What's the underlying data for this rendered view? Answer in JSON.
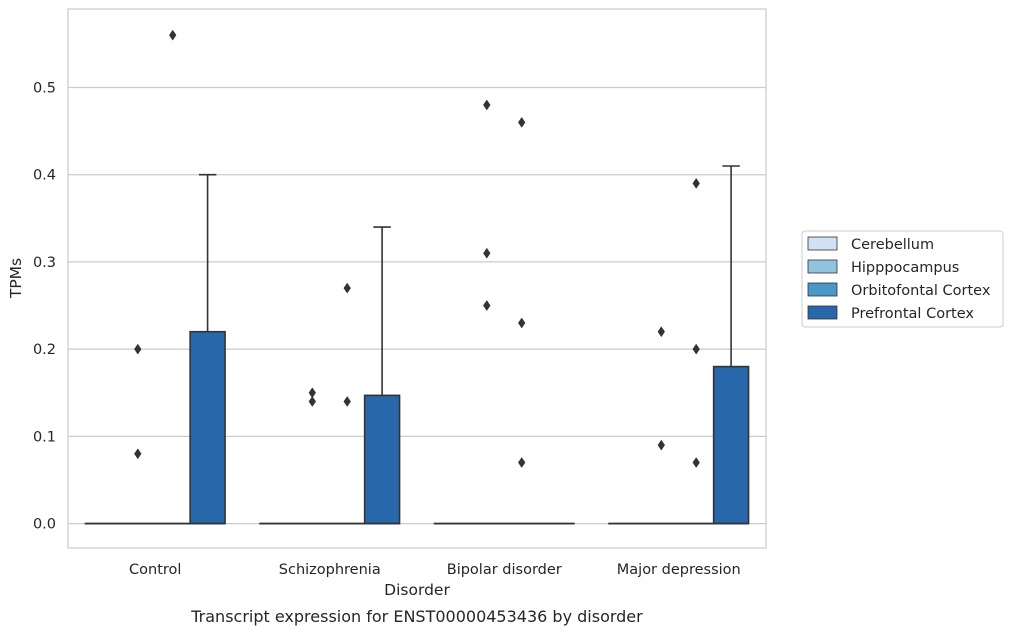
{
  "chart_data": {
    "type": "box",
    "caption": "Transcript expression for ENST00000453436 by disorder",
    "xlabel": "Disorder",
    "ylabel": "TPMs",
    "ylim": [
      -0.028,
      0.59
    ],
    "yticks": [
      0.0,
      0.1,
      0.2,
      0.3,
      0.4,
      0.5
    ],
    "ytick_labels": [
      "0.0",
      "0.1",
      "0.2",
      "0.3",
      "0.4",
      "0.5"
    ],
    "grid": "horizontal",
    "legend_position": "right",
    "categories": [
      "Control",
      "Schizophrenia",
      "Bipolar disorder",
      "Major depression"
    ],
    "series": [
      {
        "name": "Cerebellum",
        "color": "#cfe1f2",
        "boxes": [
          {
            "q1": 0,
            "median": 0,
            "q3": 0,
            "whisker_low": 0,
            "whisker_high": 0,
            "outliers": []
          },
          {
            "q1": 0,
            "median": 0,
            "q3": 0,
            "whisker_low": 0,
            "whisker_high": 0,
            "outliers": []
          },
          {
            "q1": 0,
            "median": 0,
            "q3": 0,
            "whisker_low": 0,
            "whisker_high": 0,
            "outliers": []
          },
          {
            "q1": 0,
            "median": 0,
            "q3": 0,
            "whisker_low": 0,
            "whisker_high": 0,
            "outliers": []
          }
        ]
      },
      {
        "name": "Hipppocampus",
        "color": "#93c4de",
        "boxes": [
          {
            "q1": 0,
            "median": 0,
            "q3": 0,
            "whisker_low": 0,
            "whisker_high": 0,
            "outliers": [
              0.2,
              0.08
            ]
          },
          {
            "q1": 0,
            "median": 0,
            "q3": 0,
            "whisker_low": 0,
            "whisker_high": 0,
            "outliers": [
              0.15,
              0.14
            ]
          },
          {
            "q1": 0,
            "median": 0,
            "q3": 0,
            "whisker_low": 0,
            "whisker_high": 0,
            "outliers": [
              0.48,
              0.31,
              0.25
            ]
          },
          {
            "q1": 0,
            "median": 0,
            "q3": 0,
            "whisker_low": 0,
            "whisker_high": 0,
            "outliers": [
              0.22,
              0.09
            ]
          }
        ]
      },
      {
        "name": "Orbitofontal Cortex",
        "color": "#4a98c9",
        "boxes": [
          {
            "q1": 0,
            "median": 0,
            "q3": 0,
            "whisker_low": 0,
            "whisker_high": 0,
            "outliers": [
              0.56
            ]
          },
          {
            "q1": 0,
            "median": 0,
            "q3": 0,
            "whisker_low": 0,
            "whisker_high": 0,
            "outliers": [
              0.14,
              0.27
            ]
          },
          {
            "q1": 0,
            "median": 0,
            "q3": 0,
            "whisker_low": 0,
            "whisker_high": 0,
            "outliers": [
              0.46,
              0.23,
              0.07
            ]
          },
          {
            "q1": 0,
            "median": 0,
            "q3": 0,
            "whisker_low": 0,
            "whisker_high": 0,
            "outliers": [
              0.2,
              0.39,
              0.07
            ]
          }
        ]
      },
      {
        "name": "Prefrontal Cortex",
        "color": "#2867a9",
        "boxes": [
          {
            "q1": 0,
            "median": 0,
            "q3": 0.22,
            "whisker_low": 0,
            "whisker_high": 0.4,
            "outliers": []
          },
          {
            "q1": 0,
            "median": 0,
            "q3": 0.147,
            "whisker_low": 0,
            "whisker_high": 0.34,
            "outliers": []
          },
          {
            "q1": 0,
            "median": 0,
            "q3": 0,
            "whisker_low": 0,
            "whisker_high": 0,
            "outliers": []
          },
          {
            "q1": 0,
            "median": 0,
            "q3": 0.18,
            "whisker_low": 0,
            "whisker_high": 0.41,
            "outliers": []
          }
        ]
      }
    ]
  }
}
